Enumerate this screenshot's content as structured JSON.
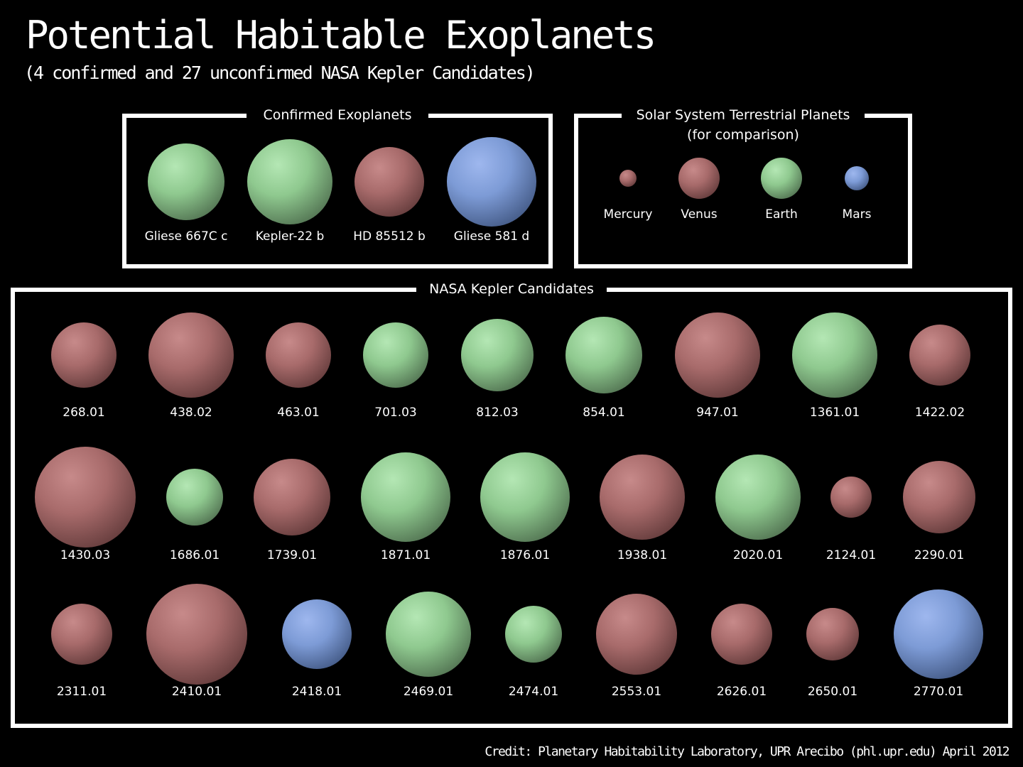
{
  "title": "Potential Habitable Exoplanets",
  "subtitle": "(4 confirmed and 27 unconfirmed NASA Kepler Candidates)",
  "credit": "Credit: Planetary Habitability Laboratory, UPR Arecibo (phl.upr.edu) April 2012",
  "colors": {
    "green": "#8fc98f",
    "red": "#a86b6b",
    "blue": "#7d9bd6"
  },
  "confirmed": {
    "label": "Confirmed Exoplanets",
    "planets": [
      {
        "name": "Gliese 667C c",
        "color": "green"
      },
      {
        "name": "Kepler-22 b",
        "color": "green"
      },
      {
        "name": "HD 85512 b",
        "color": "red"
      },
      {
        "name": "Gliese 581 d",
        "color": "blue"
      }
    ]
  },
  "solar": {
    "label_line1": "Solar System Terrestrial Planets",
    "label_line2": "(for comparison)",
    "planets": [
      {
        "name": "Mercury",
        "color": "red"
      },
      {
        "name": "Venus",
        "color": "red"
      },
      {
        "name": "Earth",
        "color": "green"
      },
      {
        "name": "Mars",
        "color": "blue"
      }
    ]
  },
  "kepler": {
    "label": "NASA Kepler Candidates",
    "planets": [
      {
        "name": "268.01",
        "color": "red"
      },
      {
        "name": "438.02",
        "color": "red"
      },
      {
        "name": "463.01",
        "color": "red"
      },
      {
        "name": "701.03",
        "color": "green"
      },
      {
        "name": "812.03",
        "color": "green"
      },
      {
        "name": "854.01",
        "color": "green"
      },
      {
        "name": "947.01",
        "color": "red"
      },
      {
        "name": "1361.01",
        "color": "green"
      },
      {
        "name": "1422.02",
        "color": "red"
      },
      {
        "name": "1430.03",
        "color": "red"
      },
      {
        "name": "1686.01",
        "color": "green"
      },
      {
        "name": "1739.01",
        "color": "red"
      },
      {
        "name": "1871.01",
        "color": "green"
      },
      {
        "name": "1876.01",
        "color": "green"
      },
      {
        "name": "1938.01",
        "color": "red"
      },
      {
        "name": "2020.01",
        "color": "green"
      },
      {
        "name": "2124.01",
        "color": "red"
      },
      {
        "name": "2290.01",
        "color": "red"
      },
      {
        "name": "2311.01",
        "color": "red"
      },
      {
        "name": "2410.01",
        "color": "red"
      },
      {
        "name": "2418.01",
        "color": "blue"
      },
      {
        "name": "2469.01",
        "color": "green"
      },
      {
        "name": "2474.01",
        "color": "green"
      },
      {
        "name": "2553.01",
        "color": "red"
      },
      {
        "name": "2626.01",
        "color": "red"
      },
      {
        "name": "2650.01",
        "color": "red"
      },
      {
        "name": "2770.01",
        "color": "blue"
      }
    ]
  }
}
